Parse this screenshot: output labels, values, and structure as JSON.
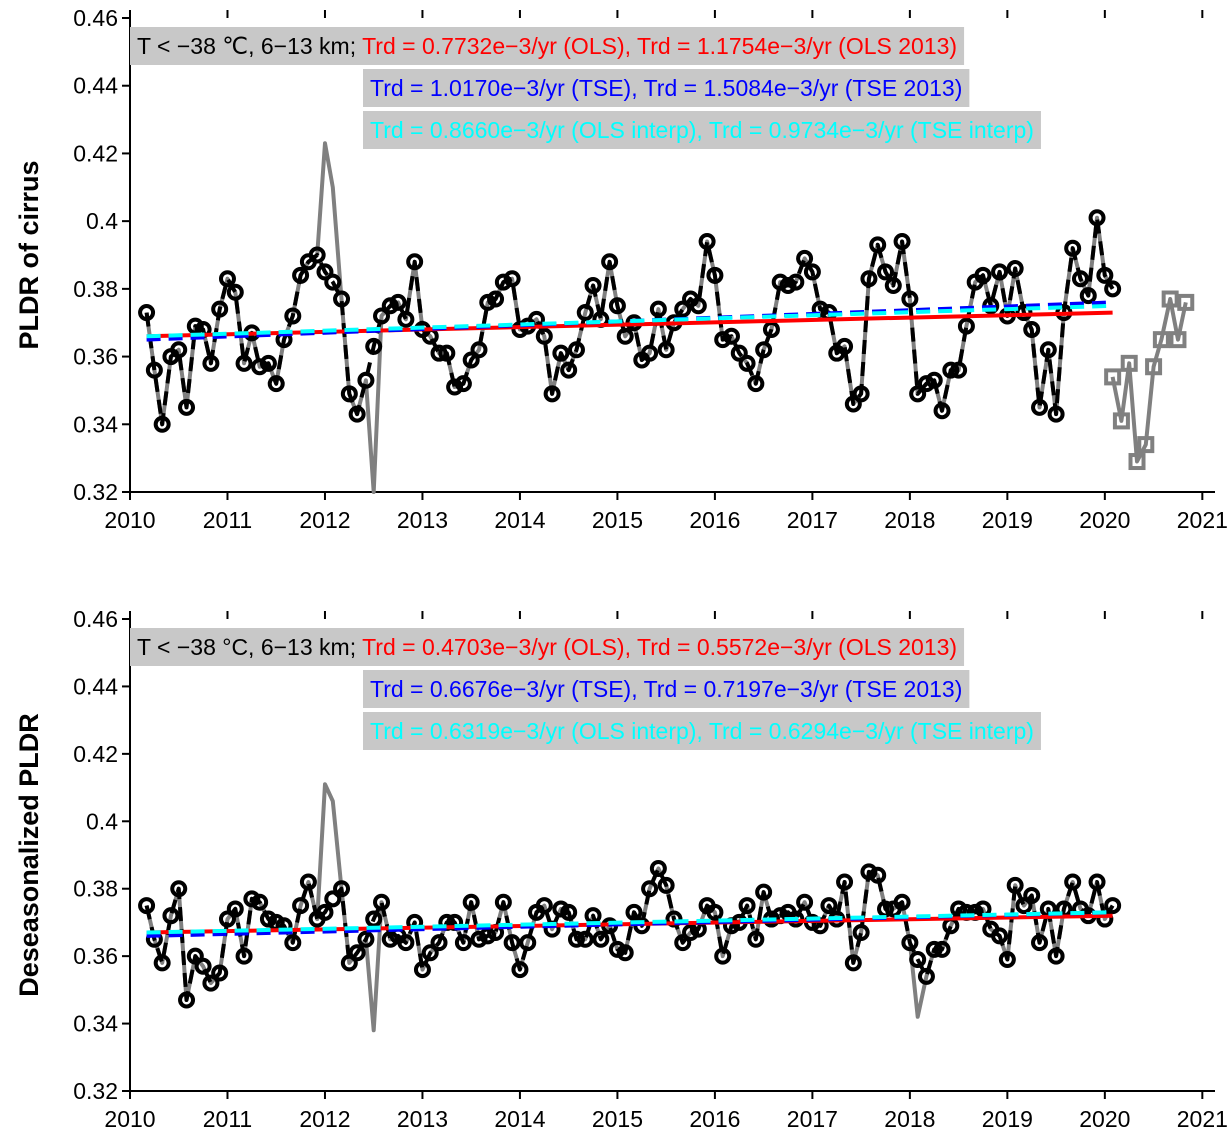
{
  "chart_data": [
    {
      "type": "line",
      "ylabel": "PLDR of cirrus",
      "xlim": [
        2010,
        2021.13
      ],
      "xticks": [
        2010,
        2011,
        2012,
        2013,
        2014,
        2015,
        2016,
        2017,
        2018,
        2019,
        2020,
        2021
      ],
      "ylim": [
        0.32,
        0.46
      ],
      "yticks": [
        0.32,
        0.34,
        0.36,
        0.38,
        0.4,
        0.42,
        0.44,
        0.46
      ],
      "annotation_background": "#c8c8c8",
      "annotations": [
        [
          {
            "text": "T < −38 ℃, 6−13 km;",
            "color": "#000000"
          },
          {
            "text": "Trd = 0.7732e−3/yr (OLS),",
            "color": "#ff0000"
          },
          {
            "text": "Trd = 1.1754e−3/yr (OLS 2013)",
            "color": "#ff0000"
          }
        ],
        [
          {
            "text": "Trd = 1.0170e−3/yr (TSE),",
            "color": "#0000ff"
          },
          {
            "text": "Trd = 1.5084e−3/yr (TSE 2013)",
            "color": "#0000ff"
          }
        ],
        [
          {
            "text": "Trd = 0.8660e−3/yr (OLS interp),",
            "color": "#00ffff"
          },
          {
            "text": "Trd = 0.9734e−3/yr (TSE interp)",
            "color": "#00ffff"
          }
        ]
      ],
      "x": [
        2010.17,
        2010.25,
        2010.33,
        2010.42,
        2010.5,
        2010.58,
        2010.67,
        2010.75,
        2010.83,
        2010.92,
        2011.0,
        2011.08,
        2011.17,
        2011.25,
        2011.33,
        2011.42,
        2011.5,
        2011.58,
        2011.67,
        2011.75,
        2011.83,
        2011.92,
        2012.0,
        2012.08,
        2012.17,
        2012.25,
        2012.33,
        2012.42,
        2012.5,
        2012.58,
        2012.67,
        2012.75,
        2012.83,
        2012.92,
        2013.0,
        2013.08,
        2013.17,
        2013.25,
        2013.33,
        2013.42,
        2013.5,
        2013.58,
        2013.67,
        2013.75,
        2013.83,
        2013.92,
        2014.0,
        2014.08,
        2014.17,
        2014.25,
        2014.33,
        2014.42,
        2014.5,
        2014.58,
        2014.67,
        2014.75,
        2014.83,
        2014.92,
        2015.0,
        2015.08,
        2015.17,
        2015.25,
        2015.33,
        2015.42,
        2015.5,
        2015.58,
        2015.67,
        2015.75,
        2015.83,
        2015.92,
        2016.0,
        2016.08,
        2016.17,
        2016.25,
        2016.33,
        2016.42,
        2016.5,
        2016.58,
        2016.67,
        2016.75,
        2016.83,
        2016.92,
        2017.0,
        2017.08,
        2017.17,
        2017.25,
        2017.33,
        2017.42,
        2017.5,
        2017.58,
        2017.67,
        2017.75,
        2017.83,
        2017.92,
        2018.0,
        2018.08,
        2018.17,
        2018.25,
        2018.33,
        2018.42,
        2018.5,
        2018.58,
        2018.67,
        2018.75,
        2018.83,
        2018.92,
        2019.0,
        2019.08,
        2019.17,
        2019.25,
        2019.33,
        2019.42,
        2019.5,
        2019.58,
        2019.67,
        2019.75,
        2019.83,
        2019.92,
        2020.0,
        2020.08
      ],
      "series": [
        {
          "color": "#808080",
          "width": 4,
          "dash": false,
          "values": [
            0.373,
            0.356,
            0.34,
            0.36,
            0.362,
            0.345,
            0.369,
            0.368,
            0.358,
            0.374,
            0.383,
            0.379,
            0.358,
            0.367,
            0.357,
            0.358,
            0.352,
            0.365,
            0.372,
            0.384,
            0.388,
            0.39,
            0.423,
            0.41,
            0.377,
            0.349,
            0.343,
            0.353,
            0.32,
            0.372,
            0.375,
            0.376,
            0.371,
            0.388,
            0.368,
            0.366,
            0.361,
            0.361,
            0.351,
            0.352,
            0.359,
            0.362,
            0.376,
            0.377,
            0.382,
            0.383,
            0.368,
            0.369,
            0.371,
            0.366,
            0.349,
            0.361,
            0.356,
            0.362,
            0.373,
            0.381,
            0.371,
            0.388,
            0.375,
            0.366,
            0.37,
            0.359,
            0.361,
            0.374,
            0.362,
            0.37,
            0.374,
            0.377,
            0.375,
            0.394,
            0.384,
            0.365,
            0.366,
            0.361,
            0.358,
            0.352,
            0.362,
            0.368,
            0.382,
            0.381,
            0.382,
            0.389,
            0.385,
            0.374,
            0.373,
            0.361,
            0.363,
            0.346,
            0.349,
            0.383,
            0.393,
            0.385,
            0.381,
            0.394,
            0.377,
            0.349,
            0.352,
            0.353,
            0.344,
            0.356,
            0.356,
            0.369,
            0.382,
            0.384,
            0.375,
            0.385,
            0.372,
            0.386,
            0.373,
            0.368,
            0.345,
            0.362,
            0.343,
            0.373,
            0.392,
            0.383,
            0.378,
            0.401,
            0.384,
            0.38
          ]
        },
        {
          "color": "#000000",
          "width": 4,
          "dash": true,
          "marker": "circle",
          "values": [
            0.373,
            0.356,
            0.34,
            0.36,
            0.362,
            0.345,
            0.369,
            0.368,
            0.358,
            0.374,
            0.383,
            0.379,
            0.358,
            0.367,
            0.357,
            0.358,
            0.352,
            0.365,
            0.372,
            0.384,
            0.388,
            0.39,
            0.385,
            0.382,
            0.377,
            0.349,
            0.343,
            0.353,
            0.363,
            0.372,
            0.375,
            0.376,
            0.371,
            0.388,
            0.368,
            0.366,
            0.361,
            0.361,
            0.351,
            0.352,
            0.359,
            0.362,
            0.376,
            0.377,
            0.382,
            0.383,
            0.368,
            0.369,
            0.371,
            0.366,
            0.349,
            0.361,
            0.356,
            0.362,
            0.373,
            0.381,
            0.371,
            0.388,
            0.375,
            0.366,
            0.37,
            0.359,
            0.361,
            0.374,
            0.362,
            0.37,
            0.374,
            0.377,
            0.375,
            0.394,
            0.384,
            0.365,
            0.366,
            0.361,
            0.358,
            0.352,
            0.362,
            0.368,
            0.382,
            0.381,
            0.382,
            0.389,
            0.385,
            0.374,
            0.373,
            0.361,
            0.363,
            0.346,
            0.349,
            0.383,
            0.393,
            0.385,
            0.381,
            0.394,
            0.377,
            0.349,
            0.352,
            0.353,
            0.344,
            0.356,
            0.356,
            0.369,
            0.382,
            0.384,
            0.375,
            0.385,
            0.372,
            0.386,
            0.373,
            0.368,
            0.345,
            0.362,
            0.343,
            0.373,
            0.392,
            0.383,
            0.378,
            0.401,
            0.384,
            0.38
          ]
        },
        {
          "color": "#ff0000",
          "width": 4,
          "dash": false,
          "x": [
            2010.17,
            2020.08
          ],
          "values": [
            0.366,
            0.373
          ]
        },
        {
          "color": "#0000ff",
          "width": 4,
          "dash": true,
          "x": [
            2010.17,
            2020.08
          ],
          "values": [
            0.365,
            0.376
          ]
        },
        {
          "color": "#00ffff",
          "width": 4,
          "dash": true,
          "x": [
            2010.17,
            2020.08
          ],
          "values": [
            0.366,
            0.375
          ]
        },
        {
          "color": "#808080",
          "width": 4,
          "dash": false,
          "marker": "square",
          "x": [
            2020.08,
            2020.17,
            2020.25,
            2020.33,
            2020.42,
            2020.5,
            2020.58,
            2020.67,
            2020.75,
            2020.83
          ],
          "values": [
            0.354,
            0.341,
            0.358,
            0.329,
            0.334,
            0.357,
            0.365,
            0.377,
            0.365,
            0.376
          ]
        }
      ]
    },
    {
      "type": "line",
      "ylabel": "Deseasonalized PLDR",
      "xlim": [
        2010,
        2021.13
      ],
      "xticks": [
        2010,
        2011,
        2012,
        2013,
        2014,
        2015,
        2016,
        2017,
        2018,
        2019,
        2020,
        2021
      ],
      "ylim": [
        0.32,
        0.46
      ],
      "yticks": [
        0.32,
        0.34,
        0.36,
        0.38,
        0.4,
        0.42,
        0.44,
        0.46
      ],
      "annotation_background": "#c8c8c8",
      "annotations": [
        [
          {
            "text": "T < −38 °C, 6−13 km;",
            "color": "#000000"
          },
          {
            "text": "Trd = 0.4703e−3/yr (OLS),",
            "color": "#ff0000"
          },
          {
            "text": "Trd = 0.5572e−3/yr (OLS 2013)",
            "color": "#ff0000"
          }
        ],
        [
          {
            "text": "Trd = 0.6676e−3/yr (TSE),",
            "color": "#0000ff"
          },
          {
            "text": "Trd = 0.7197e−3/yr (TSE 2013)",
            "color": "#0000ff"
          }
        ],
        [
          {
            "text": "Trd = 0.6319e−3/yr (OLS interp),",
            "color": "#00ffff"
          },
          {
            "text": "Trd = 0.6294e−3/yr (TSE interp)",
            "color": "#00ffff"
          }
        ]
      ],
      "x": [
        2010.17,
        2010.25,
        2010.33,
        2010.42,
        2010.5,
        2010.58,
        2010.67,
        2010.75,
        2010.83,
        2010.92,
        2011.0,
        2011.08,
        2011.17,
        2011.25,
        2011.33,
        2011.42,
        2011.5,
        2011.58,
        2011.67,
        2011.75,
        2011.83,
        2011.92,
        2012.0,
        2012.08,
        2012.17,
        2012.25,
        2012.33,
        2012.42,
        2012.5,
        2012.58,
        2012.67,
        2012.75,
        2012.83,
        2012.92,
        2013.0,
        2013.08,
        2013.17,
        2013.25,
        2013.33,
        2013.42,
        2013.5,
        2013.58,
        2013.67,
        2013.75,
        2013.83,
        2013.92,
        2014.0,
        2014.08,
        2014.17,
        2014.25,
        2014.33,
        2014.42,
        2014.5,
        2014.58,
        2014.67,
        2014.75,
        2014.83,
        2014.92,
        2015.0,
        2015.08,
        2015.17,
        2015.25,
        2015.33,
        2015.42,
        2015.5,
        2015.58,
        2015.67,
        2015.75,
        2015.83,
        2015.92,
        2016.0,
        2016.08,
        2016.17,
        2016.25,
        2016.33,
        2016.42,
        2016.5,
        2016.58,
        2016.67,
        2016.75,
        2016.83,
        2016.92,
        2017.0,
        2017.08,
        2017.17,
        2017.25,
        2017.33,
        2017.42,
        2017.5,
        2017.58,
        2017.67,
        2017.75,
        2017.83,
        2017.92,
        2018.0,
        2018.08,
        2018.17,
        2018.25,
        2018.33,
        2018.42,
        2018.5,
        2018.58,
        2018.67,
        2018.75,
        2018.83,
        2018.92,
        2019.0,
        2019.08,
        2019.17,
        2019.25,
        2019.33,
        2019.42,
        2019.5,
        2019.58,
        2019.67,
        2019.75,
        2019.83,
        2019.92,
        2020.0,
        2020.08
      ],
      "series": [
        {
          "color": "#808080",
          "width": 4,
          "dash": false,
          "values": [
            0.375,
            0.365,
            0.358,
            0.372,
            0.38,
            0.347,
            0.36,
            0.357,
            0.352,
            0.355,
            0.371,
            0.374,
            0.36,
            0.377,
            0.376,
            0.371,
            0.37,
            0.369,
            0.364,
            0.375,
            0.382,
            0.371,
            0.411,
            0.406,
            0.38,
            0.358,
            0.361,
            0.365,
            0.338,
            0.376,
            0.365,
            0.366,
            0.364,
            0.37,
            0.356,
            0.361,
            0.364,
            0.37,
            0.37,
            0.364,
            0.376,
            0.365,
            0.366,
            0.367,
            0.376,
            0.364,
            0.356,
            0.364,
            0.373,
            0.375,
            0.368,
            0.374,
            0.373,
            0.365,
            0.365,
            0.372,
            0.365,
            0.369,
            0.362,
            0.361,
            0.373,
            0.369,
            0.38,
            0.386,
            0.381,
            0.371,
            0.364,
            0.367,
            0.368,
            0.375,
            0.373,
            0.36,
            0.369,
            0.37,
            0.375,
            0.365,
            0.379,
            0.371,
            0.372,
            0.373,
            0.371,
            0.376,
            0.37,
            0.369,
            0.375,
            0.371,
            0.382,
            0.358,
            0.367,
            0.385,
            0.384,
            0.374,
            0.374,
            0.376,
            0.364,
            0.342,
            0.354,
            0.362,
            0.362,
            0.369,
            0.374,
            0.373,
            0.373,
            0.374,
            0.368,
            0.366,
            0.359,
            0.381,
            0.375,
            0.378,
            0.364,
            0.374,
            0.36,
            0.374,
            0.382,
            0.374,
            0.372,
            0.382,
            0.371,
            0.375
          ]
        },
        {
          "color": "#000000",
          "width": 4,
          "dash": true,
          "marker": "circle",
          "values": [
            0.375,
            0.365,
            0.358,
            0.372,
            0.38,
            0.347,
            0.36,
            0.357,
            0.352,
            0.355,
            0.371,
            0.374,
            0.36,
            0.377,
            0.376,
            0.371,
            0.37,
            0.369,
            0.364,
            0.375,
            0.382,
            0.371,
            0.373,
            0.377,
            0.38,
            0.358,
            0.361,
            0.365,
            0.371,
            0.376,
            0.365,
            0.366,
            0.364,
            0.37,
            0.356,
            0.361,
            0.364,
            0.37,
            0.37,
            0.364,
            0.376,
            0.365,
            0.366,
            0.367,
            0.376,
            0.364,
            0.356,
            0.364,
            0.373,
            0.375,
            0.368,
            0.374,
            0.373,
            0.365,
            0.365,
            0.372,
            0.365,
            0.369,
            0.362,
            0.361,
            0.373,
            0.369,
            0.38,
            0.386,
            0.381,
            0.371,
            0.364,
            0.367,
            0.368,
            0.375,
            0.373,
            0.36,
            0.369,
            0.37,
            0.375,
            0.365,
            0.379,
            0.371,
            0.372,
            0.373,
            0.371,
            0.376,
            0.37,
            0.369,
            0.375,
            0.371,
            0.382,
            0.358,
            0.367,
            0.385,
            0.384,
            0.374,
            0.374,
            0.376,
            0.364,
            0.359,
            0.354,
            0.362,
            0.362,
            0.369,
            0.374,
            0.373,
            0.373,
            0.374,
            0.368,
            0.366,
            0.359,
            0.381,
            0.375,
            0.378,
            0.364,
            0.374,
            0.36,
            0.374,
            0.382,
            0.374,
            0.372,
            0.382,
            0.371,
            0.375
          ]
        },
        {
          "color": "#ff0000",
          "width": 4,
          "dash": false,
          "x": [
            2010.17,
            2020.08
          ],
          "values": [
            0.367,
            0.372
          ]
        },
        {
          "color": "#0000ff",
          "width": 4,
          "dash": true,
          "x": [
            2010.17,
            2020.08
          ],
          "values": [
            0.366,
            0.373
          ]
        },
        {
          "color": "#00ffff",
          "width": 4,
          "dash": true,
          "x": [
            2010.17,
            2020.08
          ],
          "values": [
            0.367,
            0.373
          ]
        }
      ]
    }
  ]
}
